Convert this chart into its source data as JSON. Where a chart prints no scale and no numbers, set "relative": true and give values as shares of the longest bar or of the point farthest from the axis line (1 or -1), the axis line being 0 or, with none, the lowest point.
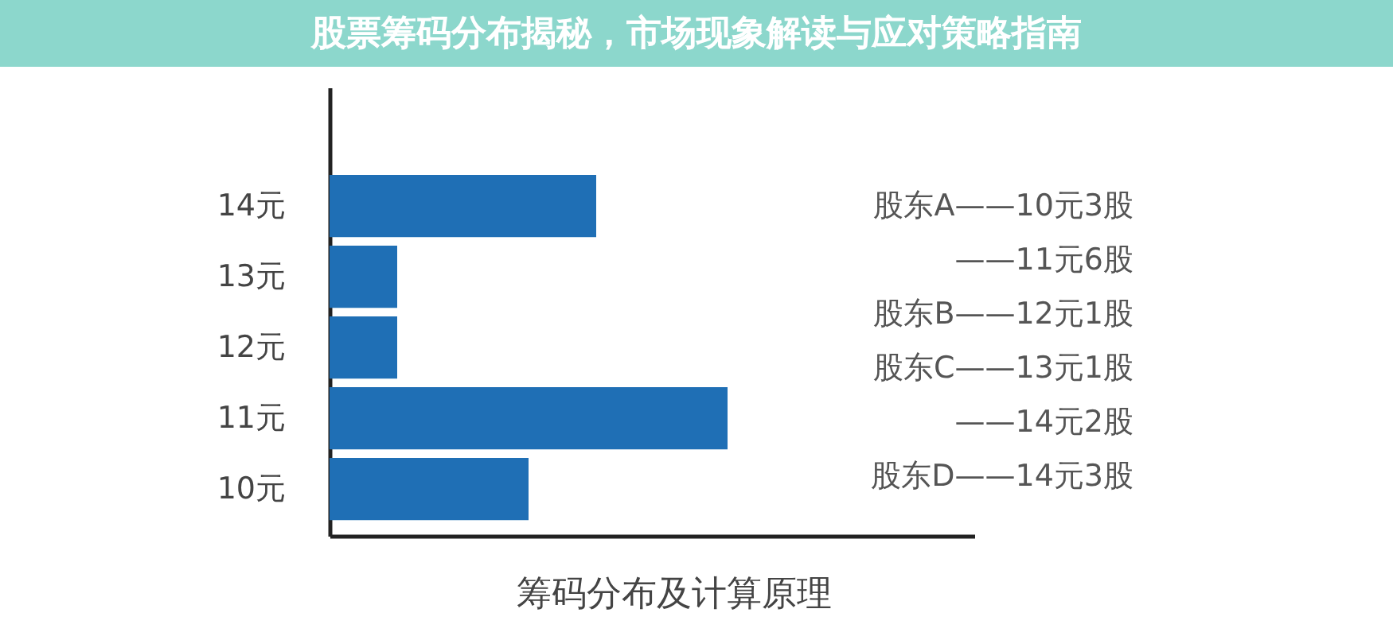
{
  "chart_data": {
    "type": "bar",
    "orientation": "horizontal",
    "relative": true,
    "title": "股票筹码分布揭秘，市场现象解读与应对策略指南",
    "xlabel": "筹码分布及计算原理",
    "categories": [
      "14元",
      "13元",
      "12元",
      "11元",
      "10元"
    ],
    "values": [
      0.67,
      0.17,
      0.17,
      1,
      0.5
    ],
    "color": "#1f6fb5",
    "annotations": [
      "股东A——10元3股",
      "——11元6股",
      "股东B——12元1股",
      "股东C——13元1股",
      "——14元2股",
      "股东D——14元3股"
    ],
    "tick_labels": "y"
  }
}
